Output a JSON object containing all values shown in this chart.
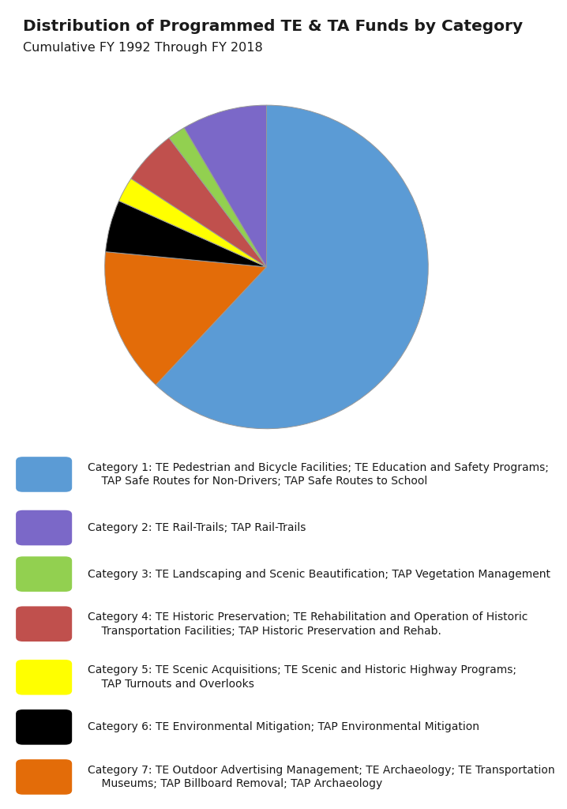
{
  "title": "Distribution of Programmed TE & TA Funds by Category",
  "subtitle": "Cumulative FY 1992 Through FY 2018",
  "slices": [
    {
      "value": 62.0,
      "color": "#5B9BD5"
    },
    {
      "value": 14.5,
      "color": "#E36C09"
    },
    {
      "value": 5.2,
      "color": "#000000"
    },
    {
      "value": 2.5,
      "color": "#FFFF00"
    },
    {
      "value": 5.5,
      "color": "#C0504D"
    },
    {
      "value": 1.8,
      "color": "#92D050"
    },
    {
      "value": 8.5,
      "color": "#7B68C8"
    }
  ],
  "legend_colors": [
    "#5B9BD5",
    "#7B68C8",
    "#92D050",
    "#C0504D",
    "#FFFF00",
    "#000000",
    "#E36C09"
  ],
  "legend_labels": [
    "Category 1: TE Pedestrian and Bicycle Facilities; TE Education and Safety Programs;\n    TAP Safe Routes for Non-Drivers; TAP Safe Routes to School",
    "Category 2: TE Rail-Trails; TAP Rail-Trails",
    "Category 3: TE Landscaping and Scenic Beautification; TAP Vegetation Management",
    "Category 4: TE Historic Preservation; TE Rehabilitation and Operation of Historic\n    Transportation Facilities; TAP Historic Preservation and Rehab.",
    "Category 5: TE Scenic Acquisitions; TE Scenic and Historic Highway Programs;\n    TAP Turnouts and Overlooks",
    "Category 6: TE Environmental Mitigation; TAP Environmental Mitigation",
    "Category 7: TE Outdoor Advertising Management; TE Archaeology; TE Transportation\n    Museums; TAP Billboard Removal; TAP Archaeology"
  ],
  "background_color": "#FFFFFF",
  "title_fontsize": 14.5,
  "subtitle_fontsize": 11.5,
  "legend_fontsize": 10.0,
  "start_angle": 90
}
